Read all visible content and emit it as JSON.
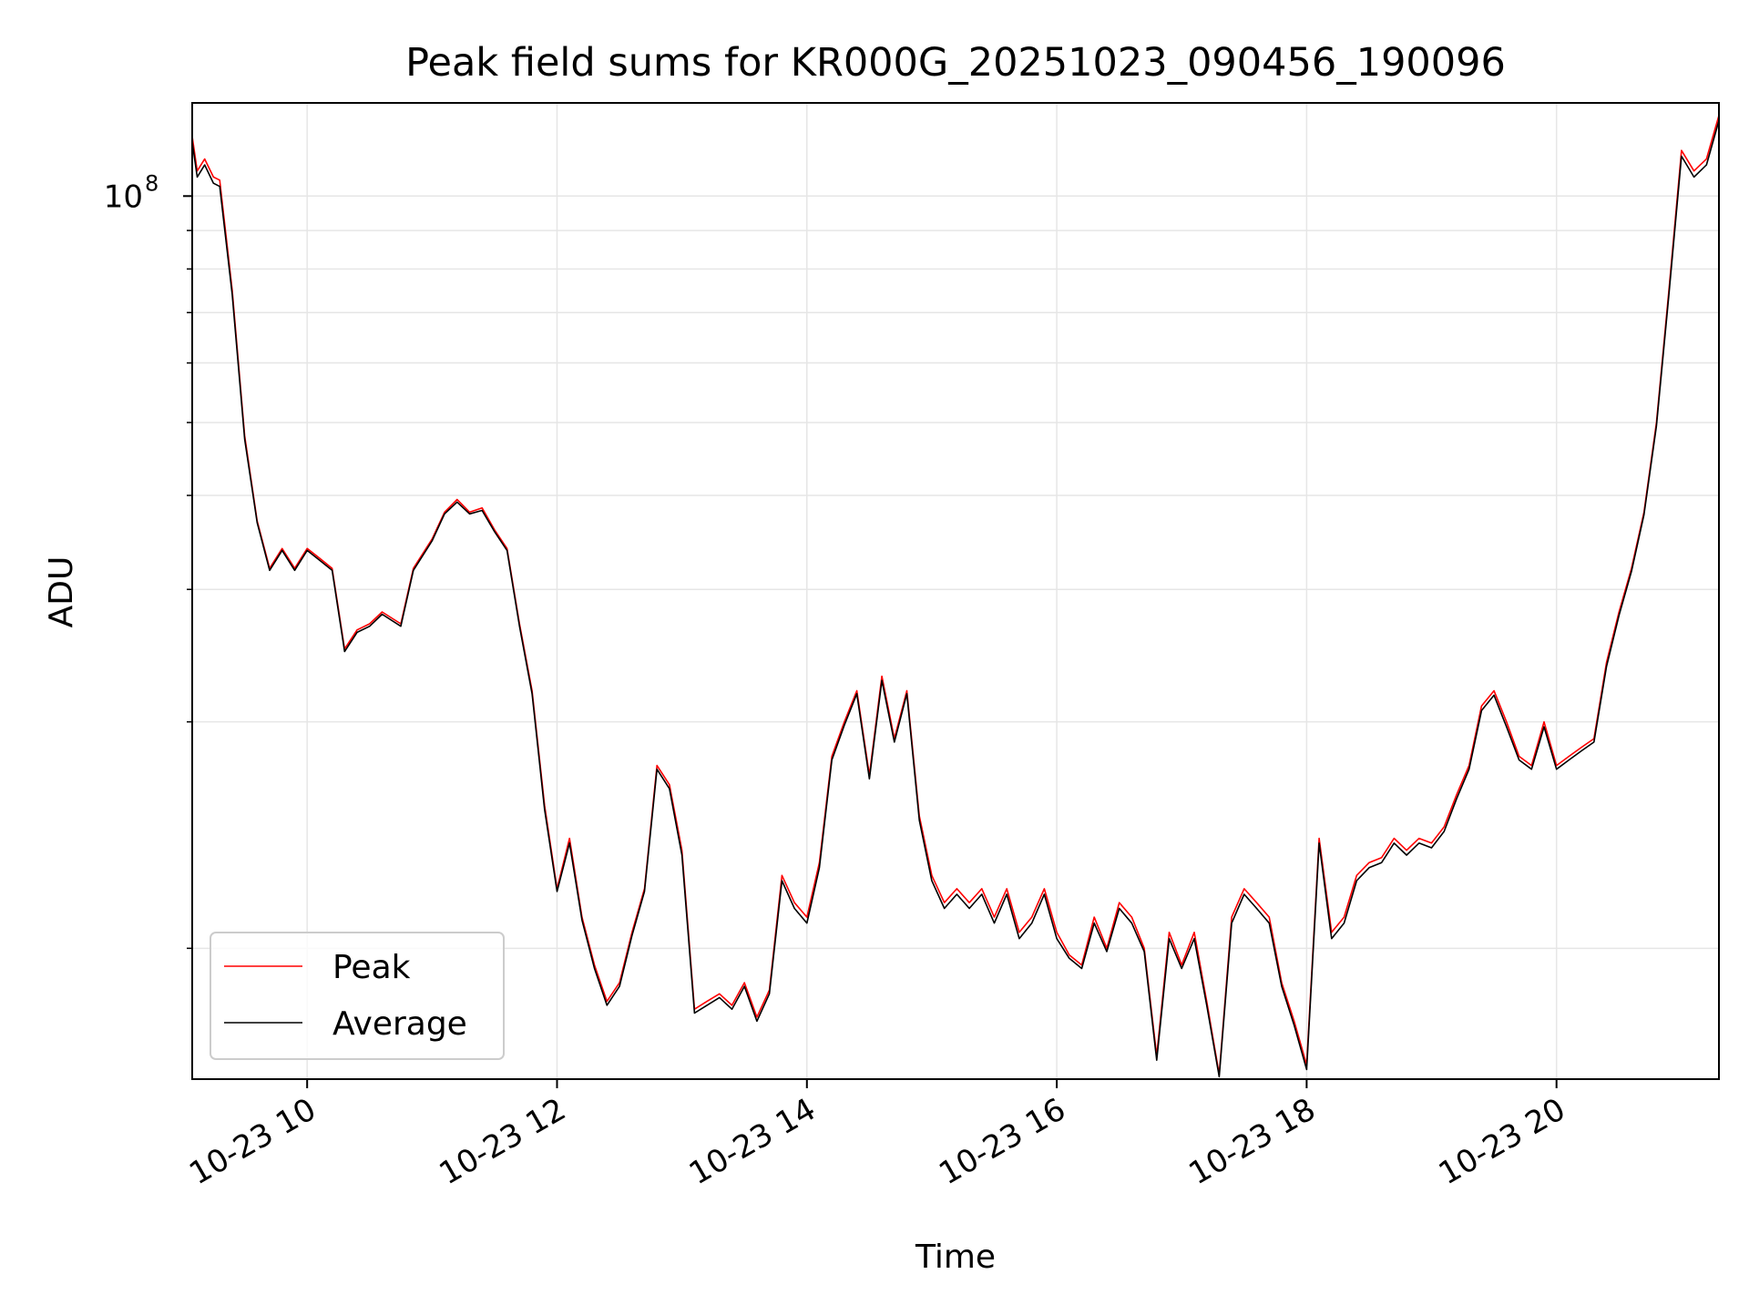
{
  "chart_data": {
    "type": "line",
    "title": "Peak field sums for KR000G_20251023_090456_190096",
    "xlabel": "Time",
    "ylabel": "ADU",
    "y_scale": "log",
    "ylim": [
      6700000.0,
      133000000.0
    ],
    "xlim": [
      9.08,
      21.3
    ],
    "grid": true,
    "legend_position": "lower-left",
    "x_ticks": [
      {
        "value": 10,
        "label": "10-23 10"
      },
      {
        "value": 12,
        "label": "10-23 12"
      },
      {
        "value": 14,
        "label": "10-23 14"
      },
      {
        "value": 16,
        "label": "10-23 16"
      },
      {
        "value": 18,
        "label": "10-23 18"
      },
      {
        "value": 20,
        "label": "10-23 20"
      }
    ],
    "y_major_tick": {
      "value": 100000000,
      "base": "10",
      "exponent": "8"
    },
    "y_minor_ticks": [
      10000000,
      20000000,
      30000000,
      40000000,
      50000000,
      60000000,
      70000000,
      80000000,
      90000000
    ],
    "series": [
      {
        "name": "Peak",
        "color": "#ff0000",
        "x": [
          9.08,
          9.12,
          9.18,
          9.25,
          9.3,
          9.4,
          9.5,
          9.6,
          9.7,
          9.8,
          9.9,
          10.0,
          10.1,
          10.2,
          10.3,
          10.4,
          10.5,
          10.6,
          10.75,
          10.85,
          11.0,
          11.1,
          11.2,
          11.3,
          11.4,
          11.5,
          11.6,
          11.7,
          11.8,
          11.9,
          12.0,
          12.1,
          12.2,
          12.3,
          12.4,
          12.5,
          12.6,
          12.7,
          12.8,
          12.9,
          13.0,
          13.1,
          13.2,
          13.3,
          13.4,
          13.5,
          13.6,
          13.7,
          13.8,
          13.9,
          14.0,
          14.1,
          14.2,
          14.3,
          14.4,
          14.5,
          14.6,
          14.7,
          14.8,
          14.9,
          15.0,
          15.1,
          15.2,
          15.3,
          15.4,
          15.5,
          15.6,
          15.7,
          15.8,
          15.9,
          16.0,
          16.1,
          16.2,
          16.3,
          16.4,
          16.5,
          16.6,
          16.7,
          16.8,
          16.9,
          17.0,
          17.1,
          17.2,
          17.3,
          17.4,
          17.5,
          17.6,
          17.7,
          17.8,
          17.9,
          18.0,
          18.1,
          18.2,
          18.3,
          18.4,
          18.5,
          18.6,
          18.7,
          18.8,
          18.9,
          19.0,
          19.1,
          19.2,
          19.3,
          19.4,
          19.5,
          19.6,
          19.7,
          19.8,
          19.9,
          20.0,
          20.1,
          20.2,
          20.3,
          20.4,
          20.5,
          20.6,
          20.7,
          20.8,
          20.9,
          21.0,
          21.1,
          21.2,
          21.3
        ],
        "values": [
          120000000,
          108000000,
          112000000,
          106000000,
          105000000,
          75000000,
          48000000,
          37000000,
          32000000,
          34000000,
          32000000,
          34000000,
          33000000,
          32000000,
          25000000,
          26500000,
          27000000,
          28000000,
          27000000,
          32000000,
          35000000,
          38000000,
          39500000,
          38000000,
          38500000,
          36000000,
          34000000,
          27000000,
          22000000,
          15500000,
          12000000,
          14000000,
          11000000,
          9500000,
          8500000,
          9000000,
          10500000,
          12000000,
          17500000,
          16500000,
          13500000,
          8300000,
          8500000,
          8700000,
          8400000,
          9000000,
          8100000,
          8800000,
          12500000,
          11500000,
          11000000,
          13000000,
          18000000,
          20000000,
          22000000,
          17000000,
          23000000,
          19000000,
          22000000,
          15000000,
          12500000,
          11500000,
          12000000,
          11500000,
          12000000,
          11000000,
          12000000,
          10500000,
          11000000,
          12000000,
          10500000,
          9800000,
          9500000,
          11000000,
          10000000,
          11500000,
          11000000,
          10000000,
          7200000,
          10500000,
          9500000,
          10500000,
          8500000,
          6800000,
          11000000,
          12000000,
          11500000,
          11000000,
          9000000,
          8000000,
          7000000,
          14000000,
          10500000,
          11000000,
          12500000,
          13000000,
          13200000,
          14000000,
          13500000,
          14000000,
          13800000,
          14500000,
          16000000,
          17500000,
          21000000,
          22000000,
          20000000,
          18000000,
          17500000,
          20000000,
          17500000,
          18000000,
          18500000,
          19000000,
          24000000,
          28000000,
          32000000,
          38000000,
          50000000,
          75000000,
          115000000,
          108000000,
          112000000,
          128000000
        ]
      },
      {
        "name": "Average",
        "color": "#000000",
        "x": [
          9.08,
          9.12,
          9.18,
          9.25,
          9.3,
          9.4,
          9.5,
          9.6,
          9.7,
          9.8,
          9.9,
          10.0,
          10.1,
          10.2,
          10.3,
          10.4,
          10.5,
          10.6,
          10.75,
          10.85,
          11.0,
          11.1,
          11.2,
          11.3,
          11.4,
          11.5,
          11.6,
          11.7,
          11.8,
          11.9,
          12.0,
          12.1,
          12.2,
          12.3,
          12.4,
          12.5,
          12.6,
          12.7,
          12.8,
          12.9,
          13.0,
          13.1,
          13.2,
          13.3,
          13.4,
          13.5,
          13.6,
          13.7,
          13.8,
          13.9,
          14.0,
          14.1,
          14.2,
          14.3,
          14.4,
          14.5,
          14.6,
          14.7,
          14.8,
          14.9,
          15.0,
          15.1,
          15.2,
          15.3,
          15.4,
          15.5,
          15.6,
          15.7,
          15.8,
          15.9,
          16.0,
          16.1,
          16.2,
          16.3,
          16.4,
          16.5,
          16.6,
          16.7,
          16.8,
          16.9,
          17.0,
          17.1,
          17.2,
          17.3,
          17.4,
          17.5,
          17.6,
          17.7,
          17.8,
          17.9,
          18.0,
          18.1,
          18.2,
          18.3,
          18.4,
          18.5,
          18.6,
          18.7,
          18.8,
          18.9,
          19.0,
          19.1,
          19.2,
          19.3,
          19.4,
          19.5,
          19.6,
          19.7,
          19.8,
          19.9,
          20.0,
          20.1,
          20.2,
          20.3,
          20.4,
          20.5,
          20.6,
          20.7,
          20.8,
          20.9,
          21.0,
          21.1,
          21.2,
          21.3
        ],
        "values": [
          118000000,
          106000000,
          110000000,
          104000000,
          103000000,
          74000000,
          47500000,
          36800000,
          31800000,
          33800000,
          31800000,
          33800000,
          32800000,
          31800000,
          24800000,
          26300000,
          26800000,
          27800000,
          26800000,
          31800000,
          34800000,
          37800000,
          39200000,
          37800000,
          38200000,
          35800000,
          33800000,
          26800000,
          21800000,
          15300000,
          11900000,
          13800000,
          10900000,
          9400000,
          8400000,
          8900000,
          10400000,
          11900000,
          17300000,
          16300000,
          13300000,
          8200000,
          8400000,
          8600000,
          8300000,
          8900000,
          8000000,
          8700000,
          12300000,
          11300000,
          10800000,
          12800000,
          17800000,
          19800000,
          21800000,
          16800000,
          22700000,
          18800000,
          21800000,
          14800000,
          12300000,
          11300000,
          11800000,
          11300000,
          11800000,
          10800000,
          11800000,
          10300000,
          10800000,
          11800000,
          10300000,
          9700000,
          9400000,
          10800000,
          9900000,
          11300000,
          10800000,
          9900000,
          7100000,
          10300000,
          9400000,
          10300000,
          8400000,
          6750000,
          10800000,
          11800000,
          11300000,
          10800000,
          8900000,
          7900000,
          6900000,
          13800000,
          10300000,
          10800000,
          12300000,
          12800000,
          13000000,
          13800000,
          13300000,
          13800000,
          13600000,
          14300000,
          15800000,
          17300000,
          20700000,
          21700000,
          19700000,
          17800000,
          17300000,
          19700000,
          17300000,
          17800000,
          18300000,
          18800000,
          23700000,
          27700000,
          31700000,
          37700000,
          49500000,
          74000000,
          113000000,
          106000000,
          110000000,
          126000000
        ]
      }
    ]
  }
}
